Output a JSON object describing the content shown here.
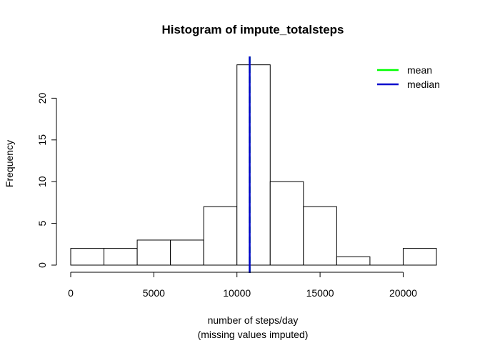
{
  "chart_data": {
    "type": "bar",
    "title": "Histogram of impute_totalsteps",
    "xlabel": "number of steps/day",
    "xlabel_line2": "(missing values imputed)",
    "ylabel": "Frequency",
    "bins": [
      {
        "from": 0,
        "to": 2000,
        "count": 2
      },
      {
        "from": 2000,
        "to": 4000,
        "count": 2
      },
      {
        "from": 4000,
        "to": 6000,
        "count": 3
      },
      {
        "from": 6000,
        "to": 8000,
        "count": 3
      },
      {
        "from": 8000,
        "to": 10000,
        "count": 7
      },
      {
        "from": 10000,
        "to": 12000,
        "count": 24
      },
      {
        "from": 12000,
        "to": 14000,
        "count": 10
      },
      {
        "from": 14000,
        "to": 16000,
        "count": 7
      },
      {
        "from": 16000,
        "to": 18000,
        "count": 1
      },
      {
        "from": 18000,
        "to": 20000,
        "count": 0
      },
      {
        "from": 20000,
        "to": 22000,
        "count": 2
      }
    ],
    "x_ticks": [
      0,
      5000,
      10000,
      15000,
      20000
    ],
    "y_ticks": [
      0,
      5,
      10,
      15,
      20
    ],
    "xlim": [
      0,
      22000
    ],
    "ylim": [
      0,
      25
    ],
    "reference_lines": [
      {
        "name": "mean",
        "value": 10766,
        "color": "#00ff00"
      },
      {
        "name": "median",
        "value": 10766,
        "color": "#0000cd"
      }
    ],
    "legend": {
      "position": "top-right",
      "entries": [
        "mean",
        "median"
      ]
    },
    "bar_fill": "#ffffff",
    "bar_stroke": "#000000"
  }
}
